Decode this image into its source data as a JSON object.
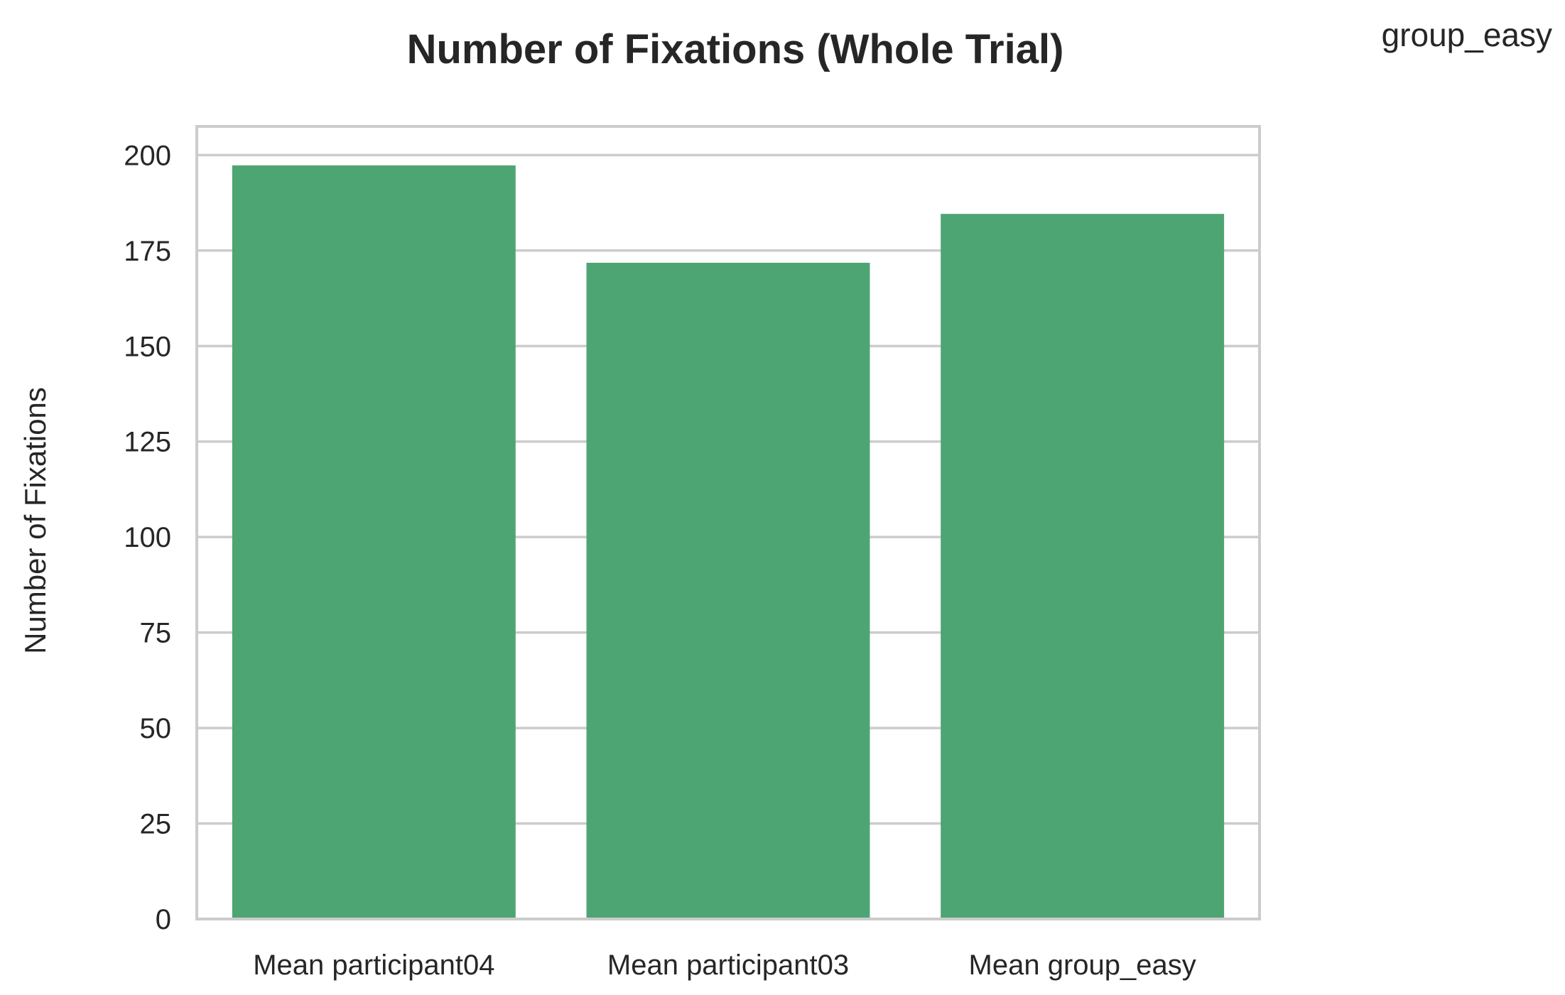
{
  "chart_data": {
    "type": "bar",
    "title": "Number of Fixations (Whole Trial)",
    "annotation": "group_easy",
    "xlabel": "",
    "ylabel": "Number of Fixations",
    "categories": [
      "Mean participant04",
      "Mean participant03",
      "Mean group_easy"
    ],
    "values": [
      197.3,
      171.8,
      184.6
    ],
    "ylim": [
      0,
      207.5
    ],
    "yticks": [
      0,
      25,
      50,
      75,
      100,
      125,
      150,
      175,
      200
    ],
    "grid": "horizontal",
    "legend": "none",
    "colors": {
      "bar": "#4ea574",
      "grid": "#cccccc",
      "frame": "#cccccc",
      "text": "#262626"
    }
  }
}
